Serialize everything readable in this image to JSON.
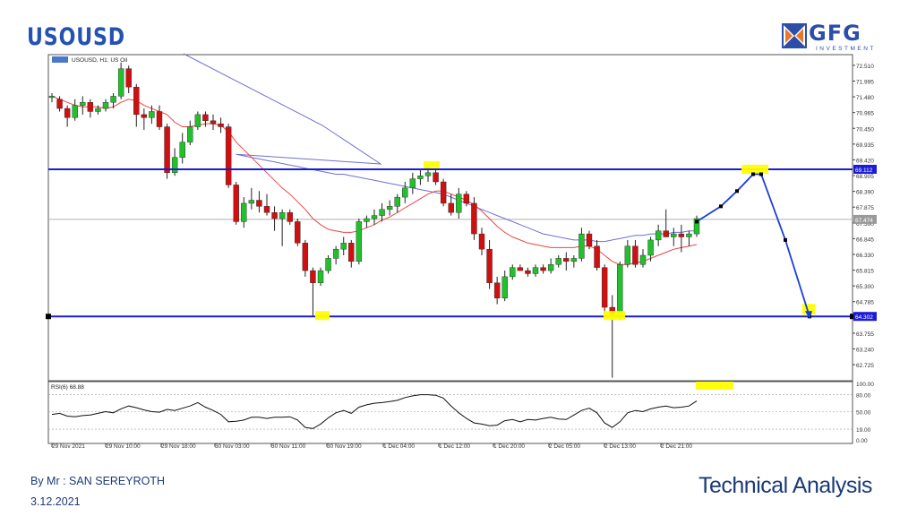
{
  "header": {
    "title": "USOUSD"
  },
  "logo": {
    "text": "GFG",
    "sub": "INVESTMENT"
  },
  "footer": {
    "author": "By Mr : SAN SEREYROTH",
    "date": "3.12.2021",
    "title": "Technical Analysis"
  },
  "colors": {
    "bull": "#22c02c",
    "bear": "#d01010",
    "ma_fast": "#ee4444",
    "ma_slow": "#6f6fd6",
    "levels": "#1c1cd8",
    "highlight": "#ffff00",
    "projection": "#1a3fd6"
  },
  "chart_data": [
    {
      "type": "candlestick",
      "legend": "USOUSD, H1: US Oil",
      "ylim": [
        62.2,
        72.8
      ],
      "y_ticks": [
        "72.510",
        "71.995",
        "71.480",
        "70.965",
        "70.450",
        "69.935",
        "69.420",
        "68.905",
        "68.390",
        "67.875",
        "67.360",
        "66.845",
        "66.330",
        "65.815",
        "65.300",
        "64.785",
        "64.270",
        "63.755",
        "63.240",
        "62.725"
      ],
      "x_ticks": [
        "29 Nov 2021",
        "29 Nov 10:00",
        "29 Nov 18:00",
        "30 Nov 03:00",
        "30 Nov 11:00",
        "30 Nov 19:00",
        "1 Dec 04:00",
        "1 Dec 12:00",
        "1 Dec 20:00",
        "2 Dec 05:00",
        "2 Dec 13:00",
        "2 Dec 21:00"
      ],
      "price_labels": {
        "resistance": "69.112",
        "current": "67.474",
        "support": "64.302"
      },
      "levels": {
        "resistance": 69.112,
        "support": 64.302,
        "current": 67.474
      },
      "candles": [
        [
          71.5,
          71.6,
          71.3,
          71.5
        ],
        [
          71.4,
          71.5,
          71.0,
          71.1
        ],
        [
          71.1,
          71.2,
          70.5,
          70.8
        ],
        [
          70.8,
          71.4,
          70.7,
          71.2
        ],
        [
          71.2,
          71.5,
          70.9,
          71.3
        ],
        [
          71.3,
          71.4,
          70.8,
          71.0
        ],
        [
          71.0,
          71.2,
          70.9,
          71.1
        ],
        [
          71.1,
          71.4,
          71.0,
          71.3
        ],
        [
          71.3,
          71.6,
          71.1,
          71.5
        ],
        [
          71.5,
          72.6,
          71.4,
          72.4
        ],
        [
          72.4,
          72.5,
          71.6,
          71.8
        ],
        [
          71.8,
          71.9,
          70.5,
          70.9
        ],
        [
          70.9,
          71.1,
          70.4,
          70.8
        ],
        [
          70.8,
          71.2,
          70.6,
          71.0
        ],
        [
          71.0,
          71.2,
          70.4,
          70.5
        ],
        [
          70.5,
          70.6,
          68.8,
          69.0
        ],
        [
          69.0,
          69.8,
          68.9,
          69.5
        ],
        [
          69.5,
          70.3,
          69.3,
          70.0
        ],
        [
          70.0,
          70.7,
          69.9,
          70.5
        ],
        [
          70.5,
          71.0,
          70.4,
          70.9
        ],
        [
          70.9,
          71.0,
          70.5,
          70.7
        ],
        [
          70.7,
          70.9,
          70.4,
          70.6
        ],
        [
          70.6,
          70.8,
          70.3,
          70.5
        ],
        [
          70.5,
          70.6,
          68.5,
          68.6
        ],
        [
          68.6,
          68.7,
          67.3,
          67.4
        ],
        [
          67.4,
          68.2,
          67.2,
          68.0
        ],
        [
          68.0,
          68.5,
          67.8,
          68.1
        ],
        [
          68.1,
          68.4,
          67.7,
          67.9
        ],
        [
          67.9,
          68.3,
          67.6,
          67.7
        ],
        [
          67.7,
          67.9,
          67.1,
          67.5
        ],
        [
          67.5,
          67.8,
          66.6,
          67.7
        ],
        [
          67.7,
          67.8,
          67.3,
          67.4
        ],
        [
          67.4,
          67.5,
          66.6,
          66.7
        ],
        [
          66.7,
          66.8,
          65.6,
          65.8
        ],
        [
          65.8,
          65.9,
          64.3,
          65.4
        ],
        [
          65.4,
          65.9,
          65.3,
          65.8
        ],
        [
          65.8,
          66.3,
          65.7,
          66.2
        ],
        [
          66.2,
          66.6,
          66.0,
          66.5
        ],
        [
          66.5,
          66.9,
          66.3,
          66.7
        ],
        [
          66.7,
          66.8,
          65.9,
          66.1
        ],
        [
          66.1,
          67.5,
          66.0,
          67.4
        ],
        [
          67.4,
          67.6,
          67.2,
          67.5
        ],
        [
          67.5,
          67.8,
          67.3,
          67.6
        ],
        [
          67.6,
          68.0,
          67.4,
          67.8
        ],
        [
          67.8,
          68.1,
          67.6,
          67.9
        ],
        [
          67.9,
          68.3,
          67.7,
          68.2
        ],
        [
          68.2,
          68.7,
          68.0,
          68.5
        ],
        [
          68.5,
          69.0,
          68.3,
          68.8
        ],
        [
          68.8,
          69.1,
          68.6,
          68.9
        ],
        [
          68.9,
          69.2,
          68.7,
          69.0
        ],
        [
          69.0,
          69.1,
          68.6,
          68.7
        ],
        [
          68.7,
          68.8,
          67.9,
          68.0
        ],
        [
          68.0,
          68.3,
          67.6,
          67.7
        ],
        [
          67.7,
          68.5,
          67.5,
          68.3
        ],
        [
          68.3,
          68.4,
          67.9,
          68.0
        ],
        [
          68.0,
          68.2,
          66.8,
          67.0
        ],
        [
          67.0,
          67.2,
          66.3,
          66.5
        ],
        [
          66.5,
          66.8,
          65.2,
          65.4
        ],
        [
          65.4,
          65.6,
          64.7,
          64.9
        ],
        [
          64.9,
          65.8,
          64.8,
          65.6
        ],
        [
          65.6,
          66.0,
          65.5,
          65.9
        ],
        [
          65.9,
          66.0,
          65.8,
          65.8
        ],
        [
          65.8,
          65.9,
          65.6,
          65.7
        ],
        [
          65.7,
          66.0,
          65.6,
          65.9
        ],
        [
          65.9,
          66.0,
          65.7,
          65.8
        ],
        [
          65.8,
          66.2,
          65.7,
          66.0
        ],
        [
          66.0,
          66.3,
          65.9,
          66.2
        ],
        [
          66.2,
          66.4,
          65.8,
          66.1
        ],
        [
          66.1,
          66.3,
          65.9,
          66.2
        ],
        [
          66.2,
          67.2,
          66.1,
          67.0
        ],
        [
          67.0,
          67.1,
          66.5,
          66.6
        ],
        [
          66.6,
          66.8,
          65.8,
          65.9
        ],
        [
          65.9,
          66.0,
          64.3,
          64.6
        ],
        [
          64.6,
          65.0,
          62.3,
          64.3
        ],
        [
          64.3,
          66.1,
          64.2,
          66.0
        ],
        [
          66.0,
          66.8,
          65.9,
          66.6
        ],
        [
          66.6,
          66.8,
          65.9,
          66.0
        ],
        [
          66.0,
          66.5,
          65.9,
          66.3
        ],
        [
          66.3,
          66.9,
          66.1,
          66.8
        ],
        [
          66.8,
          67.3,
          66.6,
          67.1
        ],
        [
          67.1,
          67.8,
          66.9,
          66.9
        ],
        [
          66.9,
          67.2,
          66.6,
          67.0
        ],
        [
          67.0,
          67.3,
          66.4,
          66.9
        ],
        [
          66.9,
          67.1,
          66.6,
          67.0
        ],
        [
          67.0,
          67.6,
          66.9,
          67.5
        ]
      ],
      "ma_fast": [
        71.5,
        71.4,
        71.3,
        71.2,
        71.15,
        71.15,
        71.15,
        71.1,
        71.15,
        71.3,
        71.4,
        71.35,
        71.2,
        71.1,
        71.0,
        70.9,
        70.65,
        70.5,
        70.5,
        70.55,
        70.6,
        70.6,
        70.55,
        70.35,
        70.0,
        69.75,
        69.5,
        69.25,
        69.0,
        68.75,
        68.5,
        68.3,
        68.05,
        67.8,
        67.5,
        67.3,
        67.15,
        67.1,
        67.05,
        67.05,
        67.1,
        67.2,
        67.3,
        67.45,
        67.55,
        67.7,
        67.85,
        68.0,
        68.15,
        68.3,
        68.4,
        68.4,
        68.3,
        68.2,
        68.1,
        67.95,
        67.75,
        67.5,
        67.25,
        67.05,
        66.9,
        66.8,
        66.7,
        66.65,
        66.6,
        66.55,
        66.55,
        66.55,
        66.55,
        66.6,
        66.6,
        66.5,
        66.3,
        66.1,
        66.0,
        66.0,
        66.05,
        66.1,
        66.2,
        66.3,
        66.4,
        66.5,
        66.55,
        66.6,
        66.65
      ],
      "ma_slow": [
        null,
        null,
        null,
        null,
        null,
        null,
        null,
        null,
        null,
        null,
        null,
        null,
        null,
        null,
        null,
        null,
        null,
        null,
        null,
        null,
        null,
        null,
        null,
        null,
        69.6,
        69.55,
        69.5,
        69.45,
        69.4,
        69.35,
        69.3,
        69.25,
        69.2,
        69.15,
        69.1,
        69.05,
        69.0,
        68.95,
        68.95,
        68.9,
        68.85,
        68.8,
        68.75,
        68.7,
        68.65,
        68.6,
        68.55,
        68.5,
        68.45,
        68.4,
        68.35,
        68.3,
        68.2,
        68.1,
        68.0,
        67.9,
        67.8,
        67.7,
        67.6,
        67.5,
        67.4,
        67.3,
        67.2,
        67.1,
        67.0,
        66.95,
        66.9,
        66.85,
        66.8,
        66.8,
        66.8,
        66.75,
        66.75,
        66.8,
        66.85,
        66.9,
        66.95,
        66.95,
        67.0,
        67.0,
        67.0,
        67.05,
        67.05,
        67.1,
        67.1
      ],
      "projection": [
        [
          0,
          67.4
        ],
        [
          3,
          67.9
        ],
        [
          5,
          68.4
        ],
        [
          7,
          68.95
        ],
        [
          8,
          68.95
        ],
        [
          11,
          66.8
        ],
        [
          14,
          64.3
        ]
      ]
    },
    {
      "type": "line",
      "legend": "RSI(6) 68.88",
      "ylim": [
        0,
        100
      ],
      "y_ticks": [
        "100.00",
        "80.00",
        "50.00",
        "19.00",
        "0.00"
      ],
      "values": [
        45,
        47,
        42,
        41,
        43,
        44,
        47,
        50,
        48,
        55,
        60,
        57,
        53,
        50,
        49,
        54,
        52,
        56,
        60,
        66,
        58,
        52,
        45,
        32,
        33,
        35,
        40,
        40,
        38,
        40,
        40,
        41,
        35,
        22,
        20,
        28,
        39,
        48,
        52,
        47,
        58,
        62,
        65,
        66,
        68,
        70,
        75,
        78,
        80,
        80,
        79,
        74,
        60,
        48,
        38,
        30,
        28,
        25,
        26,
        34,
        36,
        32,
        36,
        35,
        38,
        40,
        37,
        36,
        44,
        52,
        56,
        48,
        30,
        22,
        32,
        48,
        52,
        50,
        55,
        58,
        60,
        57,
        58,
        60,
        68.9
      ]
    }
  ]
}
